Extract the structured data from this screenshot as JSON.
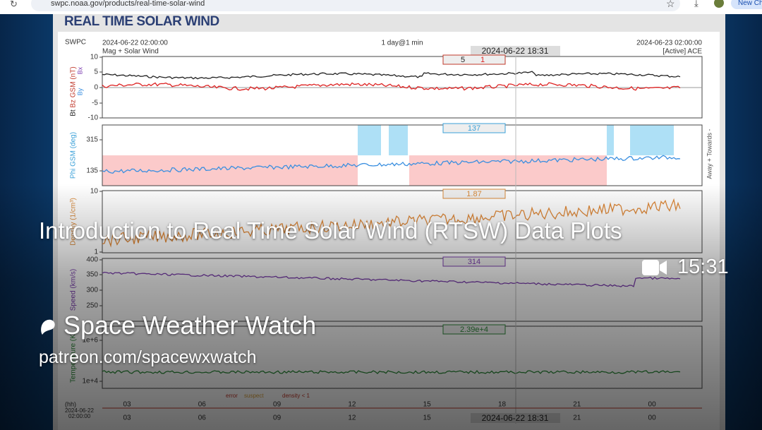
{
  "browser": {
    "url": "swpc.noaa.gov/products/real-time-solar-wind",
    "button": "New Ch"
  },
  "page": {
    "title": "REAL TIME SOLAR WIND"
  },
  "plot": {
    "header": {
      "agency": "SWPC",
      "start": "2024-06-22 02:00:00",
      "product": "Mag + Solar Wind",
      "resolution": "1 day@1 min",
      "cursor": "2024-06-22 18:31",
      "end": "2024-06-23 02:00:00",
      "source": "[Active] ACE"
    },
    "panels": [
      {
        "label": "Bz GSM (nT)",
        "extra": [
          "Bt",
          "Bx",
          "By"
        ],
        "ticks": [
          "10",
          "5",
          "0",
          "-5",
          "-10"
        ],
        "readout": [
          "5",
          "1"
        ]
      },
      {
        "label": "Phi GSM (deg)",
        "ticks": [
          "315",
          "135"
        ],
        "readout": [
          "137"
        ],
        "side": "Away + Towards -"
      },
      {
        "label": "Density (1/cm³)",
        "ticks": [
          "10",
          "1"
        ],
        "readout": [
          "1.87"
        ]
      },
      {
        "label": "Speed (km/s)",
        "ticks": [
          "400",
          "350",
          "300",
          "250"
        ],
        "readout": [
          "314"
        ]
      },
      {
        "label": "Temperature (K)",
        "ticks": [
          "1e+6",
          "1e+4"
        ],
        "readout": [
          "2.39e+4"
        ]
      }
    ],
    "legend": [
      "error",
      "suspect",
      "density < 1"
    ],
    "time_axis": {
      "unit": "(hh)",
      "start": "2024-06-22",
      "start_time": "02:00:00",
      "hours": [
        "03",
        "06",
        "09",
        "12",
        "15",
        "18",
        "21",
        "00"
      ],
      "cursor": "2024-06-22 18:31"
    }
  },
  "video": {
    "title": "Introduction to Real Time Solar Wind (RTSW) Data Plots",
    "duration": "15:31",
    "channel": "Space Weather Watch",
    "link": "patreon.com/spacewxwatch"
  }
}
